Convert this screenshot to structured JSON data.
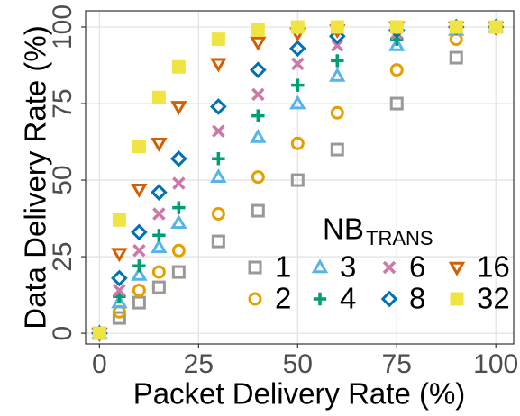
{
  "chart_data": {
    "type": "scatter",
    "x_label": "Packet Delivery Rate (%)",
    "y_label": "Data Delivery Rate (%)",
    "legend_title": "NB",
    "legend_title_sub": "TRANS",
    "xlim": [
      -3.5,
      104.5
    ],
    "ylim": [
      -3.5,
      105.3
    ],
    "xticks": [
      0,
      25,
      50,
      75,
      100
    ],
    "yticks": [
      0,
      25,
      50,
      75,
      100
    ],
    "grid": true,
    "series": [
      {
        "name": "1",
        "color": "#999999",
        "marker": "square-open",
        "x": [
          0,
          5,
          10,
          15,
          20,
          30,
          40,
          50,
          60,
          75,
          90,
          100
        ],
        "values": [
          0,
          5,
          10,
          15,
          20,
          30,
          40,
          50,
          60,
          75,
          90,
          100
        ]
      },
      {
        "name": "2",
        "color": "#E69F00",
        "marker": "circle-open",
        "x": [
          0,
          5,
          10,
          15,
          20,
          30,
          40,
          50,
          60,
          75,
          90,
          100
        ],
        "values": [
          0,
          7,
          14,
          20,
          27,
          39,
          51,
          62,
          72,
          86,
          96,
          100
        ]
      },
      {
        "name": "3",
        "color": "#56B4E9",
        "marker": "triangle-open",
        "x": [
          0,
          5,
          10,
          15,
          20,
          30,
          40,
          50,
          60,
          75,
          90,
          100
        ],
        "values": [
          0,
          10,
          19,
          28,
          36,
          51,
          64,
          75,
          84,
          94,
          99,
          100
        ]
      },
      {
        "name": "4",
        "color": "#009E73",
        "marker": "plus",
        "x": [
          0,
          5,
          10,
          15,
          20,
          30,
          40,
          50,
          60,
          75,
          90,
          100
        ],
        "values": [
          0,
          12,
          22,
          32,
          41,
          57,
          71,
          81,
          89,
          96,
          100,
          100
        ]
      },
      {
        "name": "6",
        "color": "#CC79A7",
        "marker": "cross",
        "x": [
          0,
          5,
          10,
          15,
          20,
          30,
          40,
          50,
          60,
          75,
          90,
          100
        ],
        "values": [
          0,
          14,
          27,
          39,
          49,
          66,
          78,
          88,
          94,
          98,
          100,
          100
        ]
      },
      {
        "name": "8",
        "color": "#0072B2",
        "marker": "diamond-open",
        "x": [
          0,
          5,
          10,
          15,
          20,
          30,
          40,
          50,
          60,
          75,
          90,
          100
        ],
        "values": [
          0,
          18,
          33,
          46,
          57,
          74,
          86,
          93,
          97,
          99,
          100,
          100
        ]
      },
      {
        "name": "16",
        "color": "#D55E00",
        "marker": "triangle-down-open",
        "x": [
          0,
          5,
          10,
          15,
          20,
          30,
          40,
          50,
          60,
          75,
          90,
          100
        ],
        "values": [
          0,
          26,
          47,
          62,
          74,
          88,
          95,
          98,
          99,
          100,
          100,
          100
        ]
      },
      {
        "name": "32",
        "color": "#F0E442",
        "marker": "square-filled",
        "x": [
          0,
          5,
          10,
          15,
          20,
          30,
          40,
          50,
          60,
          75,
          90,
          100
        ],
        "values": [
          0,
          37,
          61,
          77,
          87,
          96,
          99,
          100,
          100,
          100,
          100,
          100
        ]
      }
    ]
  }
}
